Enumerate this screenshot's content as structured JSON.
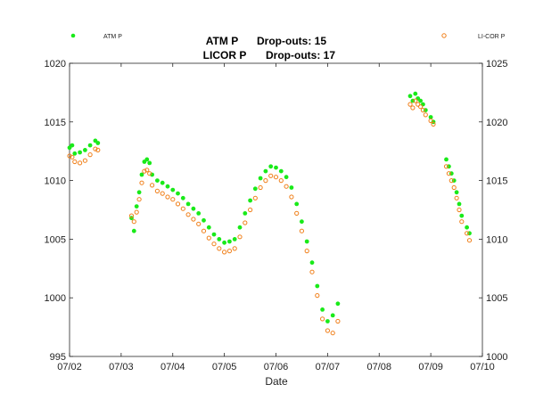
{
  "chart_data": {
    "type": "scatter",
    "title_lines": [
      {
        "label": "ATM P",
        "dropouts": "Drop-outs: 15"
      },
      {
        "label": "LICOR P",
        "dropouts": "Drop-outs: 17"
      }
    ],
    "xlabel": "Date",
    "x_ticks": [
      "07/02",
      "07/03",
      "07/04",
      "07/05",
      "07/06",
      "07/07",
      "07/08",
      "07/09",
      "07/10"
    ],
    "xlim_days": [
      2,
      10
    ],
    "ylim_left": [
      995,
      1020
    ],
    "y_ticks_left": [
      "995",
      "1000",
      "1005",
      "1010",
      "1015",
      "1020"
    ],
    "ylim_right": [
      1000,
      1025
    ],
    "y_ticks_right": [
      "1000",
      "1005",
      "1010",
      "1015",
      "1020",
      "1025"
    ],
    "grid": false,
    "legend": [
      {
        "name": "ATM P",
        "position": "top-left",
        "marker": "filled-circle"
      },
      {
        "name": "LI-COR P",
        "position": "top-right",
        "marker": "open-circle"
      }
    ],
    "colors": {
      "atm": "#19ea19",
      "licor": "#f07f19"
    },
    "series": [
      {
        "name": "ATM P",
        "axis": "left",
        "segments": [
          [
            [
              2.0,
              1012.8
            ],
            [
              2.05,
              1013.0
            ],
            [
              2.1,
              1012.3
            ],
            [
              2.2,
              1012.4
            ],
            [
              2.3,
              1012.6
            ],
            [
              2.4,
              1013.0
            ],
            [
              2.5,
              1013.4
            ],
            [
              2.55,
              1013.2
            ]
          ],
          [
            [
              3.2,
              1006.8
            ],
            [
              3.25,
              1005.7
            ],
            [
              3.3,
              1007.8
            ],
            [
              3.35,
              1009.0
            ],
            [
              3.4,
              1010.5
            ],
            [
              3.45,
              1011.6
            ],
            [
              3.5,
              1011.8
            ],
            [
              3.55,
              1011.5
            ],
            [
              3.6,
              1010.5
            ],
            [
              3.7,
              1010.0
            ],
            [
              3.8,
              1009.8
            ],
            [
              3.9,
              1009.5
            ],
            [
              4.0,
              1009.2
            ],
            [
              4.1,
              1008.9
            ],
            [
              4.2,
              1008.5
            ],
            [
              4.3,
              1008.0
            ],
            [
              4.4,
              1007.6
            ],
            [
              4.5,
              1007.2
            ],
            [
              4.6,
              1006.6
            ],
            [
              4.7,
              1006.0
            ],
            [
              4.8,
              1005.4
            ],
            [
              4.9,
              1005.0
            ],
            [
              5.0,
              1004.7
            ],
            [
              5.1,
              1004.8
            ],
            [
              5.2,
              1005.0
            ],
            [
              5.3,
              1006.0
            ],
            [
              5.4,
              1007.2
            ],
            [
              5.5,
              1008.3
            ],
            [
              5.6,
              1009.3
            ],
            [
              5.7,
              1010.2
            ],
            [
              5.8,
              1010.8
            ],
            [
              5.9,
              1011.2
            ],
            [
              6.0,
              1011.1
            ],
            [
              6.1,
              1010.8
            ],
            [
              6.2,
              1010.3
            ],
            [
              6.3,
              1009.4
            ],
            [
              6.4,
              1008.0
            ],
            [
              6.5,
              1006.5
            ],
            [
              6.6,
              1004.8
            ],
            [
              6.7,
              1003.0
            ],
            [
              6.8,
              1001.0
            ],
            [
              6.9,
              999.0
            ],
            [
              7.0,
              998.0
            ],
            [
              7.1,
              998.5
            ],
            [
              7.2,
              999.5
            ]
          ],
          [
            [
              8.6,
              1017.2
            ],
            [
              8.65,
              1016.8
            ],
            [
              8.7,
              1017.4
            ],
            [
              8.75,
              1017.0
            ],
            [
              8.8,
              1016.8
            ],
            [
              8.85,
              1016.5
            ],
            [
              8.9,
              1016.0
            ],
            [
              9.0,
              1015.4
            ],
            [
              9.05,
              1015.0
            ]
          ],
          [
            [
              9.3,
              1011.8
            ],
            [
              9.35,
              1011.2
            ],
            [
              9.4,
              1010.6
            ],
            [
              9.45,
              1010.0
            ],
            [
              9.5,
              1009.0
            ],
            [
              9.55,
              1008.0
            ],
            [
              9.6,
              1007.0
            ],
            [
              9.7,
              1006.0
            ],
            [
              9.75,
              1005.5
            ]
          ]
        ]
      },
      {
        "name": "LI-COR P",
        "axis": "left",
        "segments": [
          [
            [
              2.0,
              1012.1
            ],
            [
              2.05,
              1012.0
            ],
            [
              2.1,
              1011.6
            ],
            [
              2.2,
              1011.5
            ],
            [
              2.3,
              1011.7
            ],
            [
              2.4,
              1012.2
            ],
            [
              2.5,
              1012.7
            ],
            [
              2.55,
              1012.6
            ]
          ],
          [
            [
              3.2,
              1007.0
            ],
            [
              3.25,
              1006.5
            ],
            [
              3.3,
              1007.3
            ],
            [
              3.35,
              1008.4
            ],
            [
              3.4,
              1009.8
            ],
            [
              3.45,
              1010.8
            ],
            [
              3.5,
              1010.9
            ],
            [
              3.55,
              1010.6
            ],
            [
              3.6,
              1009.6
            ],
            [
              3.7,
              1009.1
            ],
            [
              3.8,
              1008.9
            ],
            [
              3.9,
              1008.6
            ],
            [
              4.0,
              1008.4
            ],
            [
              4.1,
              1008.0
            ],
            [
              4.2,
              1007.6
            ],
            [
              4.3,
              1007.1
            ],
            [
              4.4,
              1006.7
            ],
            [
              4.5,
              1006.3
            ],
            [
              4.6,
              1005.7
            ],
            [
              4.7,
              1005.1
            ],
            [
              4.8,
              1004.6
            ],
            [
              4.9,
              1004.2
            ],
            [
              5.0,
              1003.9
            ],
            [
              5.1,
              1004.0
            ],
            [
              5.2,
              1004.2
            ],
            [
              5.3,
              1005.2
            ],
            [
              5.4,
              1006.4
            ],
            [
              5.5,
              1007.5
            ],
            [
              5.6,
              1008.5
            ],
            [
              5.7,
              1009.4
            ],
            [
              5.8,
              1010.0
            ],
            [
              5.9,
              1010.4
            ],
            [
              6.0,
              1010.3
            ],
            [
              6.1,
              1010.0
            ],
            [
              6.2,
              1009.5
            ],
            [
              6.3,
              1008.6
            ],
            [
              6.4,
              1007.2
            ],
            [
              6.5,
              1005.7
            ],
            [
              6.6,
              1004.0
            ],
            [
              6.7,
              1002.2
            ],
            [
              6.8,
              1000.2
            ],
            [
              6.9,
              998.2
            ],
            [
              7.0,
              997.2
            ],
            [
              7.1,
              997.0
            ],
            [
              7.2,
              998.0
            ]
          ],
          [
            [
              8.6,
              1016.5
            ],
            [
              8.65,
              1016.2
            ],
            [
              8.7,
              1016.8
            ],
            [
              8.75,
              1016.5
            ],
            [
              8.8,
              1016.3
            ],
            [
              8.85,
              1016.0
            ],
            [
              8.9,
              1015.6
            ],
            [
              9.0,
              1015.1
            ],
            [
              9.05,
              1014.8
            ]
          ],
          [
            [
              9.3,
              1011.2
            ],
            [
              9.35,
              1010.6
            ],
            [
              9.4,
              1010.0
            ],
            [
              9.45,
              1009.4
            ],
            [
              9.5,
              1008.5
            ],
            [
              9.55,
              1007.5
            ],
            [
              9.6,
              1006.5
            ],
            [
              9.7,
              1005.5
            ],
            [
              9.75,
              1004.9
            ]
          ]
        ]
      }
    ]
  }
}
